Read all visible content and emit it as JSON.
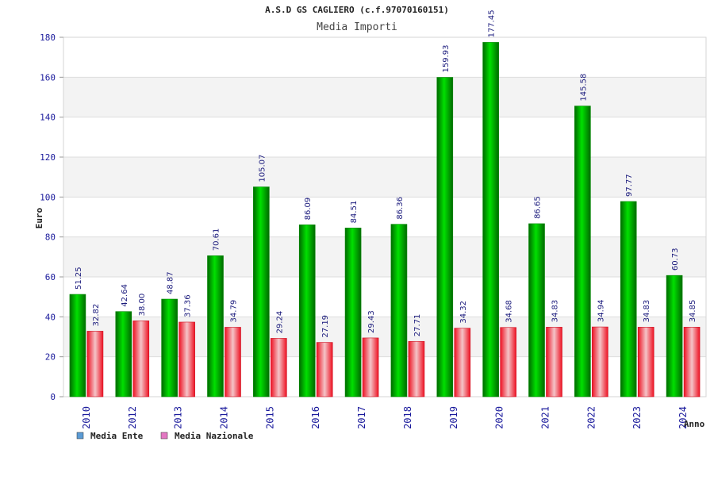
{
  "chart_data": {
    "type": "bar",
    "title": "A.S.D GS CAGLIERO (c.f.97070160151)",
    "subtitle": "Media Importi",
    "xlabel": "Anno",
    "ylabel": "Euro",
    "ylim": [
      0,
      180
    ],
    "yticks": [
      0,
      20,
      40,
      60,
      80,
      100,
      120,
      140,
      160,
      180
    ],
    "grid": "horizontal bands",
    "legend_position": "bottom-left",
    "categories": [
      "2010",
      "2012",
      "2013",
      "2014",
      "2015",
      "2016",
      "2017",
      "2018",
      "2019",
      "2020",
      "2021",
      "2022",
      "2023",
      "2024"
    ],
    "series": [
      {
        "name": "Media Ente",
        "legend_color": "#5b9bd5",
        "bar_color": "#00b000",
        "values": [
          51.25,
          42.64,
          48.87,
          70.61,
          105.07,
          86.09,
          84.51,
          86.36,
          159.93,
          177.45,
          86.65,
          145.58,
          97.77,
          60.73
        ],
        "labels": [
          "51.25",
          "42.64",
          "48.87",
          "70.61",
          "105.07",
          "86.09",
          "84.51",
          "86.36",
          "159.93",
          "177.45",
          "86.65",
          "145.58",
          "97.77",
          "60.73"
        ]
      },
      {
        "name": "Media Nazionale",
        "legend_color": "#e377c2",
        "bar_color": "#ee2233",
        "values": [
          32.82,
          38.0,
          37.36,
          34.79,
          29.24,
          27.19,
          29.43,
          27.71,
          34.32,
          34.68,
          34.83,
          34.94,
          34.83,
          34.85
        ],
        "labels": [
          "32.82",
          "38.00",
          "37.36",
          "34.79",
          "29.24",
          "27.19",
          "29.43",
          "27.71",
          "34.32",
          "34.68",
          "34.83",
          "34.94",
          "34.83",
          "34.85"
        ]
      }
    ]
  }
}
